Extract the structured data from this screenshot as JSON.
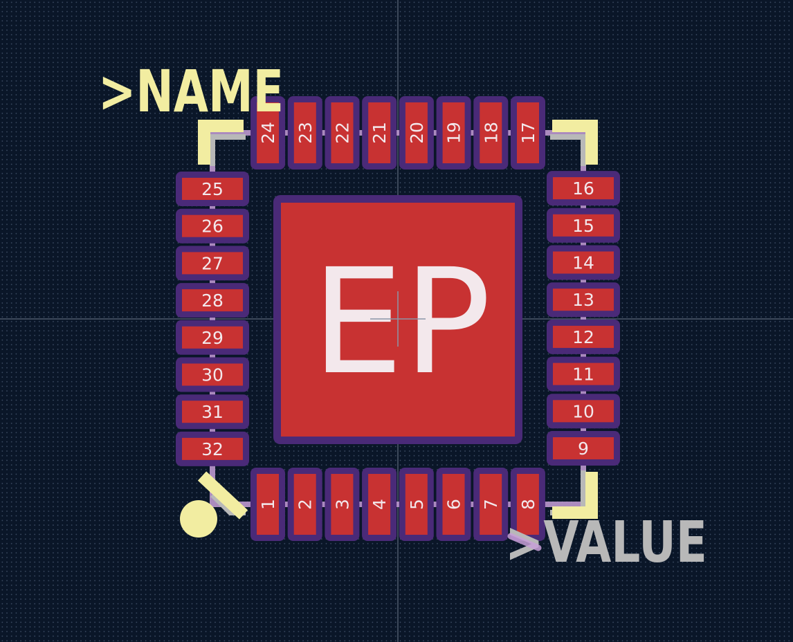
{
  "footprint": {
    "name_text": ">NAME",
    "value_text": ">VALUE",
    "exposed_pad_label": "EP",
    "pads": {
      "bottom": [
        "1",
        "2",
        "3",
        "4",
        "5",
        "6",
        "7",
        "8"
      ],
      "right": [
        "9",
        "10",
        "11",
        "12",
        "13",
        "14",
        "15",
        "16"
      ],
      "top": [
        "17",
        "18",
        "19",
        "20",
        "21",
        "22",
        "23",
        "24"
      ],
      "left": [
        "25",
        "26",
        "27",
        "28",
        "29",
        "30",
        "31",
        "32"
      ]
    }
  },
  "colors": {
    "background": "#0a1628",
    "pad_copper": "#c83232",
    "solder_mask": "#4a2a78",
    "silkscreen": "#f2eda1",
    "fab": "#b8b8b8",
    "courtyard": "#c8a0d8",
    "origin_lines": "#8a96a8"
  }
}
